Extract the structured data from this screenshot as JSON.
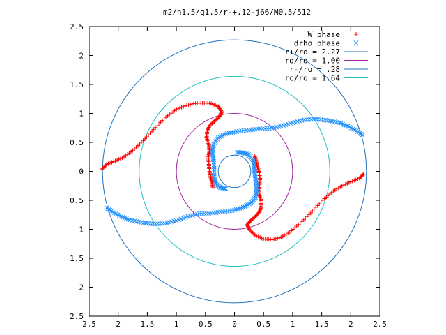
{
  "chart_data": {
    "type": "scatter",
    "title": "m2/n1.5/q1.5/r-+.12-j66/M0.5/512",
    "xlim": [
      -2.5,
      2.5
    ],
    "ylim": [
      -2.5,
      2.5
    ],
    "xticks": [
      "2.5",
      "2",
      "1.5",
      "1",
      "0.5",
      "0",
      "0.5",
      "1",
      "1.5",
      "2",
      "2.5"
    ],
    "yticks": [
      "2.5",
      "2",
      "1.5",
      "1",
      "0.5",
      "0",
      "0.5",
      "1",
      "1.5",
      "2",
      "2.5"
    ],
    "grid": false,
    "legend_position": "top-right",
    "series": [
      {
        "name": "W phase",
        "marker": "plus",
        "color": "#ff0000",
        "arms": [
          [
            [
              -2.28,
              0.04
            ],
            [
              -2.2,
              0.12
            ],
            [
              -2.05,
              0.18
            ],
            [
              -1.9,
              0.25
            ],
            [
              -1.75,
              0.36
            ],
            [
              -1.6,
              0.5
            ],
            [
              -1.45,
              0.66
            ],
            [
              -1.3,
              0.82
            ],
            [
              -1.15,
              0.96
            ],
            [
              -1.0,
              1.07
            ],
            [
              -0.85,
              1.13
            ],
            [
              -0.7,
              1.17
            ],
            [
              -0.55,
              1.18
            ],
            [
              -0.4,
              1.17
            ],
            [
              -0.28,
              1.12
            ],
            [
              -0.22,
              1.03
            ],
            [
              -0.25,
              0.95
            ],
            [
              -0.33,
              0.88
            ],
            [
              -0.42,
              0.8
            ],
            [
              -0.47,
              0.7
            ],
            [
              -0.48,
              0.58
            ],
            [
              -0.44,
              0.46
            ],
            [
              -0.43,
              0.35
            ],
            [
              -0.45,
              0.25
            ],
            [
              -0.44,
              0.12
            ],
            [
              -0.43,
              0.0
            ],
            [
              -0.41,
              -0.1
            ],
            [
              -0.39,
              -0.18
            ],
            [
              -0.37,
              -0.28
            ]
          ],
          [
            [
              2.22,
              -0.05
            ],
            [
              2.15,
              -0.12
            ],
            [
              2.0,
              -0.18
            ],
            [
              1.85,
              -0.25
            ],
            [
              1.7,
              -0.34
            ],
            [
              1.55,
              -0.47
            ],
            [
              1.4,
              -0.62
            ],
            [
              1.25,
              -0.78
            ],
            [
              1.1,
              -0.92
            ],
            [
              0.95,
              -1.05
            ],
            [
              0.8,
              -1.14
            ],
            [
              0.65,
              -1.18
            ],
            [
              0.5,
              -1.17
            ],
            [
              0.35,
              -1.1
            ],
            [
              0.25,
              -1.0
            ],
            [
              0.22,
              -0.92
            ],
            [
              0.28,
              -0.85
            ],
            [
              0.36,
              -0.78
            ],
            [
              0.43,
              -0.7
            ],
            [
              0.46,
              -0.6
            ],
            [
              0.45,
              -0.48
            ],
            [
              0.42,
              -0.38
            ],
            [
              0.43,
              -0.25
            ],
            [
              0.44,
              -0.12
            ],
            [
              0.42,
              0.0
            ],
            [
              0.39,
              0.1
            ],
            [
              0.37,
              0.18
            ],
            [
              0.35,
              0.26
            ]
          ]
        ]
      },
      {
        "name": "drho phase",
        "marker": "cross",
        "color": "#1e90ff",
        "arms": [
          [
            [
              2.2,
              0.63
            ],
            [
              2.1,
              0.7
            ],
            [
              1.95,
              0.78
            ],
            [
              1.8,
              0.84
            ],
            [
              1.6,
              0.88
            ],
            [
              1.4,
              0.9
            ],
            [
              1.2,
              0.89
            ],
            [
              1.0,
              0.84
            ],
            [
              0.8,
              0.78
            ],
            [
              0.6,
              0.74
            ],
            [
              0.4,
              0.73
            ],
            [
              0.2,
              0.71
            ],
            [
              0.0,
              0.68
            ],
            [
              -0.15,
              0.65
            ],
            [
              -0.28,
              0.58
            ],
            [
              -0.36,
              0.47
            ],
            [
              -0.38,
              0.33
            ],
            [
              -0.36,
              0.2
            ],
            [
              -0.35,
              0.05
            ],
            [
              -0.35,
              -0.1
            ],
            [
              -0.32,
              -0.22
            ],
            [
              -0.24,
              -0.28
            ],
            [
              -0.15,
              -0.3
            ]
          ],
          [
            [
              -2.2,
              -0.63
            ],
            [
              -2.1,
              -0.7
            ],
            [
              -1.95,
              -0.78
            ],
            [
              -1.8,
              -0.84
            ],
            [
              -1.6,
              -0.88
            ],
            [
              -1.4,
              -0.91
            ],
            [
              -1.2,
              -0.9
            ],
            [
              -1.0,
              -0.85
            ],
            [
              -0.8,
              -0.78
            ],
            [
              -0.6,
              -0.73
            ],
            [
              -0.4,
              -0.72
            ],
            [
              -0.2,
              -0.7
            ],
            [
              0.0,
              -0.67
            ],
            [
              0.15,
              -0.62
            ],
            [
              0.28,
              -0.55
            ],
            [
              0.36,
              -0.45
            ],
            [
              0.38,
              -0.32
            ],
            [
              0.37,
              -0.18
            ],
            [
              0.35,
              -0.05
            ],
            [
              0.34,
              0.08
            ],
            [
              0.32,
              0.2
            ],
            [
              0.24,
              0.29
            ],
            [
              0.15,
              0.32
            ],
            [
              0.05,
              0.33
            ]
          ]
        ]
      }
    ],
    "circles": [
      {
        "name": "r+/ro = 2.27",
        "radius": 2.27,
        "color": "#1f6fbf"
      },
      {
        "name": "ro/ro = 1.00",
        "radius": 1.0,
        "color": "#a020a0"
      },
      {
        "name": "r-/ro = .28",
        "radius": 0.28,
        "color": "#1f6fbf"
      },
      {
        "name": "rc/ro = 1.64",
        "radius": 1.64,
        "color": "#20c0c0"
      }
    ]
  }
}
